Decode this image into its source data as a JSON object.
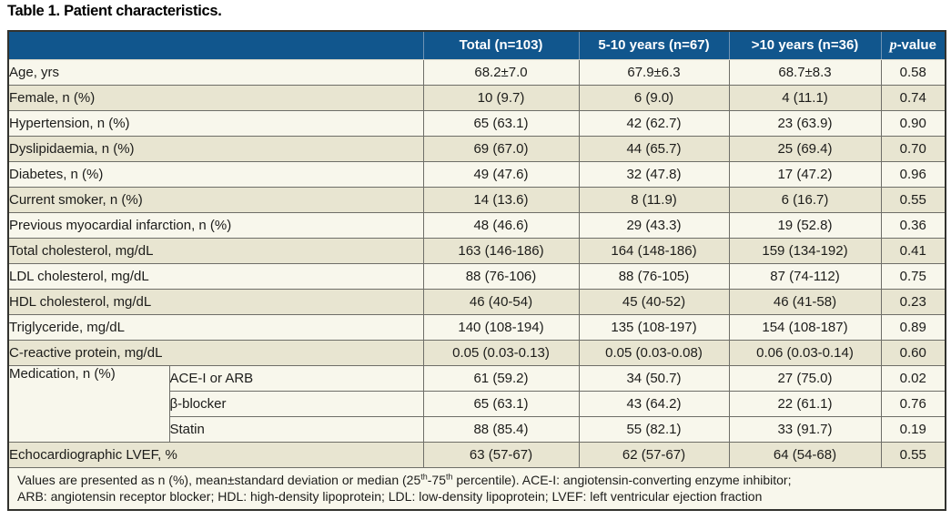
{
  "title": "Table 1. Patient characteristics.",
  "colors": {
    "header_bg": "#11568d",
    "header_text": "#ffffff",
    "header_divider": "#6f94b5",
    "row_light": "#f8f7ec",
    "row_dark": "#e8e5d1",
    "border_outer": "#32322e",
    "border_inner": "#6e6e68",
    "text": "#1c1c1a"
  },
  "table": {
    "header": {
      "col_total": "Total (n=103)",
      "col_5_10": "5-10 years (n=67)",
      "col_gt10": ">10 years (n=36)",
      "col_p_italic": "p",
      "col_p_rest": "-value"
    },
    "rows": [
      {
        "label": "Age, yrs",
        "values": [
          "68.2±7.0",
          "67.9±6.3",
          "68.7±8.3",
          "0.58"
        ],
        "shade": "light"
      },
      {
        "label": "Female, n (%)",
        "values": [
          "10 (9.7)",
          "6 (9.0)",
          "4 (11.1)",
          "0.74"
        ],
        "shade": "dark"
      },
      {
        "label": "Hypertension, n (%)",
        "values": [
          "65 (63.1)",
          "42 (62.7)",
          "23 (63.9)",
          "0.90"
        ],
        "shade": "light"
      },
      {
        "label": "Dyslipidaemia, n (%)",
        "values": [
          "69 (67.0)",
          "44 (65.7)",
          "25 (69.4)",
          "0.70"
        ],
        "shade": "dark"
      },
      {
        "label": "Diabetes, n (%)",
        "values": [
          "49 (47.6)",
          "32 (47.8)",
          "17 (47.2)",
          "0.96"
        ],
        "shade": "light"
      },
      {
        "label": "Current smoker, n (%)",
        "values": [
          "14 (13.6)",
          "8 (11.9)",
          "6 (16.7)",
          "0.55"
        ],
        "shade": "dark"
      },
      {
        "label": "Previous myocardial infarction, n (%)",
        "values": [
          "48 (46.6)",
          "29 (43.3)",
          "19 (52.8)",
          "0.36"
        ],
        "shade": "light"
      },
      {
        "label": "Total cholesterol, mg/dL",
        "values": [
          "163 (146-186)",
          "164 (148-186)",
          "159 (134-192)",
          "0.41"
        ],
        "shade": "dark"
      },
      {
        "label": "LDL cholesterol, mg/dL",
        "values": [
          "88 (76-106)",
          "88 (76-105)",
          "87 (74-112)",
          "0.75"
        ],
        "shade": "light"
      },
      {
        "label": "HDL cholesterol, mg/dL",
        "values": [
          "46 (40-54)",
          "45 (40-52)",
          "46 (41-58)",
          "0.23"
        ],
        "shade": "dark"
      },
      {
        "label": "Triglyceride, mg/dL",
        "values": [
          "140 (108-194)",
          "135 (108-197)",
          "154 (108-187)",
          "0.89"
        ],
        "shade": "light"
      },
      {
        "label": "C-reactive protein, mg/dL",
        "values": [
          "0.05 (0.03-0.13)",
          "0.05 (0.03-0.08)",
          "0.06 (0.03-0.14)",
          "0.60"
        ],
        "shade": "dark"
      },
      {
        "group": "Medication, n (%)",
        "group_rows": 3,
        "sublabel": "ACE-I or ARB",
        "values": [
          "61 (59.2)",
          "34 (50.7)",
          "27 (75.0)",
          "0.02"
        ],
        "shade": "light"
      },
      {
        "sublabel": "β-blocker",
        "values": [
          "65 (63.1)",
          "43 (64.2)",
          "22 (61.1)",
          "0.76"
        ],
        "shade": "light"
      },
      {
        "sublabel": "Statin",
        "values": [
          "88 (85.4)",
          "55 (82.1)",
          "33 (91.7)",
          "0.19"
        ],
        "shade": "light"
      },
      {
        "label": "Echocardiographic LVEF, %",
        "values": [
          "63 (57-67)",
          "62 (57-67)",
          "64 (54-68)",
          "0.55"
        ],
        "shade": "dark"
      }
    ],
    "footnote": {
      "line1": [
        {
          "t": "Values are presented as n (%), mean±standard deviation or median (25"
        },
        {
          "t": "th",
          "sup": true
        },
        {
          "t": "-75"
        },
        {
          "t": "th",
          "sup": true
        },
        {
          "t": " percentile). ACE-I: angiotensin-converting enzyme inhibitor;"
        }
      ],
      "line2": [
        {
          "t": "ARB: angiotensin receptor blocker; HDL: high-density lipoprotein; LDL: low-density lipoprotein; LVEF: left ventricular ejection fraction"
        }
      ]
    }
  }
}
